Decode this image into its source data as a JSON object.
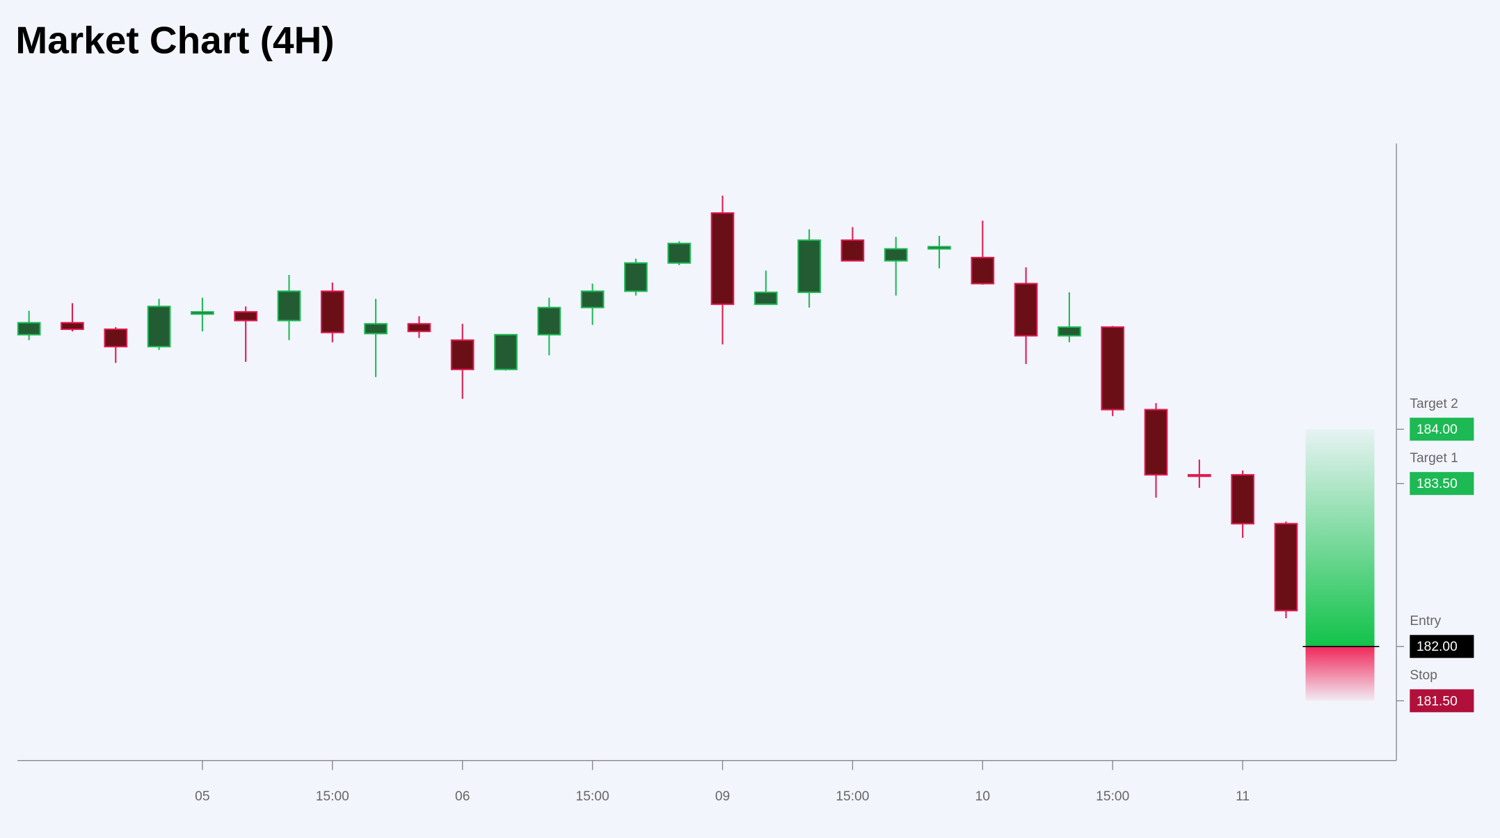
{
  "chart_data": {
    "type": "candlestick",
    "title": "Market Chart (4H)",
    "categories": [
      null,
      null,
      null,
      null,
      "05",
      null,
      null,
      "15:00",
      null,
      null,
      "06",
      null,
      null,
      "15:00",
      null,
      null,
      "09",
      null,
      null,
      "15:00",
      null,
      null,
      "10",
      null,
      null,
      "15:00",
      null,
      null,
      "11",
      null
    ],
    "open": [
      184.87,
      184.98,
      184.92,
      184.76,
      185.06,
      185.08,
      185.0,
      185.27,
      184.88,
      184.97,
      184.82,
      184.55,
      184.87,
      185.12,
      185.27,
      185.53,
      185.99,
      185.15,
      185.26,
      185.74,
      185.55,
      185.66,
      185.58,
      185.34,
      184.86,
      184.94,
      184.18,
      183.58,
      183.58,
      183.13
    ],
    "high": [
      185.09,
      185.16,
      184.94,
      185.2,
      185.21,
      185.13,
      185.42,
      185.35,
      185.2,
      185.04,
      184.97,
      184.87,
      185.21,
      185.34,
      185.57,
      185.73,
      186.15,
      185.46,
      185.84,
      185.86,
      185.77,
      185.78,
      185.92,
      185.49,
      185.26,
      184.95,
      184.24,
      183.72,
      183.62,
      183.15
    ],
    "low": [
      184.82,
      184.9,
      184.61,
      184.73,
      184.9,
      184.62,
      184.82,
      184.8,
      184.48,
      184.84,
      184.28,
      184.54,
      184.68,
      184.96,
      185.23,
      185.51,
      184.78,
      185.15,
      185.12,
      185.55,
      185.23,
      185.48,
      185.33,
      184.6,
      184.8,
      184.12,
      183.37,
      183.46,
      183.0,
      182.26
    ],
    "close": [
      184.98,
      184.92,
      184.76,
      185.13,
      185.08,
      185.0,
      185.27,
      184.89,
      184.97,
      184.9,
      184.55,
      184.87,
      185.12,
      185.27,
      185.53,
      185.71,
      185.15,
      185.26,
      185.74,
      185.55,
      185.66,
      185.68,
      185.34,
      184.86,
      184.94,
      184.18,
      183.58,
      183.57,
      183.13,
      182.33
    ],
    "up_color": "#235c32",
    "up_border": "#1db954",
    "down_color": "#6b0f16",
    "down_border": "#e0194f",
    "ylim": [
      180.95,
      186.63
    ],
    "levels": [
      {
        "name": "Target 2",
        "value": 184,
        "label": "184.00",
        "color": "#1db954"
      },
      {
        "name": "Target 1",
        "value": 183.5,
        "label": "183.50",
        "color": "#1db954"
      },
      {
        "name": "Entry",
        "value": 182,
        "label": "182.00",
        "color": "#000000"
      },
      {
        "name": "Stop",
        "value": 181.5,
        "label": "181.50",
        "color": "#b0103a"
      }
    ]
  }
}
